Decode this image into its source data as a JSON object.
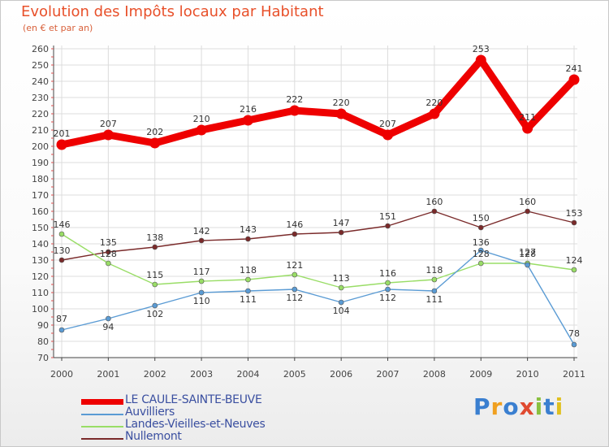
{
  "header": {
    "title": "Evolution des Impôts locaux par Habitant",
    "subtitle": "(en € et par an)"
  },
  "logo": {
    "text": "Proxiti",
    "letters": [
      "P",
      "r",
      "o",
      "x",
      "i",
      "t",
      "i"
    ],
    "colors": [
      "#3a7fd0",
      "#f0a020",
      "#3a7fd0",
      "#e04a30",
      "#8ac040",
      "#3a7fd0",
      "#e0c020"
    ]
  },
  "chart_data": {
    "type": "line",
    "title": "Evolution des Impôts locaux par Habitant",
    "subtitle": "(en € et par an)",
    "xlabel": "",
    "ylabel": "",
    "x": [
      "2000",
      "2001",
      "2002",
      "2003",
      "2004",
      "2005",
      "2006",
      "2007",
      "2008",
      "2009",
      "2010",
      "2011"
    ],
    "ylim": [
      70,
      260
    ],
    "yticks": [
      70,
      80,
      90,
      100,
      110,
      120,
      130,
      140,
      150,
      160,
      170,
      180,
      190,
      200,
      210,
      220,
      230,
      240,
      250,
      260
    ],
    "grid": true,
    "legend_position": "bottom-left",
    "series": [
      {
        "name": "LE CAULE-SAINTE-BEUVE",
        "color": "#ee0000",
        "values": [
          201,
          207,
          202,
          210,
          216,
          222,
          220,
          207,
          220,
          253,
          211,
          241
        ]
      },
      {
        "name": "Auvilliers",
        "color": "#5a9bd4",
        "values": [
          87,
          94,
          102,
          110,
          111,
          112,
          104,
          112,
          111,
          136,
          127,
          78
        ]
      },
      {
        "name": "Landes-Vieilles-et-Neuves",
        "color": "#99dd66",
        "values": [
          146,
          128,
          115,
          117,
          118,
          121,
          113,
          116,
          118,
          128,
          128,
          124
        ]
      },
      {
        "name": "Nullemont",
        "color": "#7a2a2a",
        "values": [
          130,
          135,
          138,
          142,
          143,
          146,
          147,
          151,
          160,
          150,
          160,
          153
        ]
      }
    ]
  }
}
